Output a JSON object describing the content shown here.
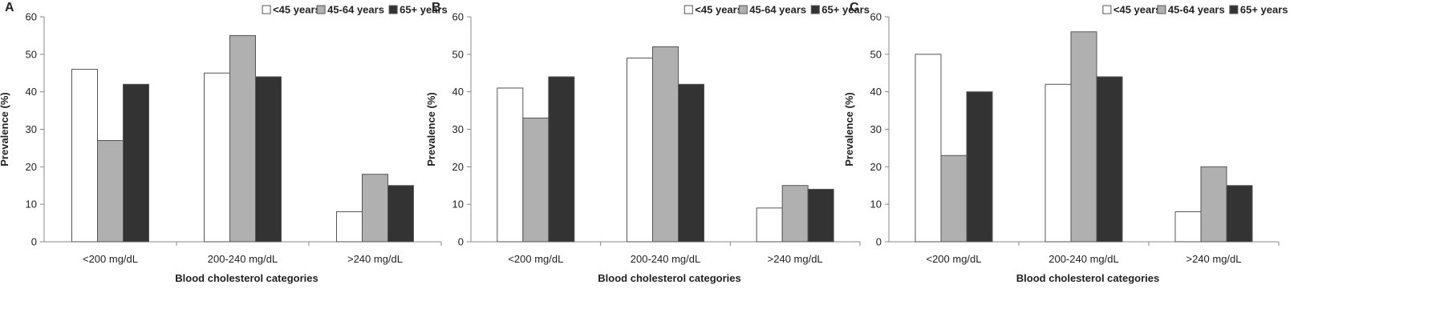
{
  "colors": {
    "lt45": "#ffffff",
    "mid": "#b0b0b0",
    "old": "#333333",
    "stroke": "#555555",
    "axis": "#888888"
  },
  "chart_data": [
    {
      "type": "bar",
      "panel_label": "A",
      "categories": [
        "<200 mg/dL",
        "200-240 mg/dL",
        ">240 mg/dL"
      ],
      "series": [
        {
          "name": "<45 years",
          "values": [
            46,
            45,
            8
          ]
        },
        {
          "name": "45-64 years",
          "values": [
            27,
            55,
            18
          ]
        },
        {
          "name": "65+ years",
          "values": [
            42,
            44,
            15
          ]
        }
      ],
      "xlabel": "Blood cholesterol categories",
      "ylabel": "Prevalence (%)",
      "ylim": [
        0,
        60
      ],
      "yticks": [
        0,
        10,
        20,
        30,
        40,
        50,
        60
      ],
      "grid": false,
      "legend": "top"
    },
    {
      "type": "bar",
      "panel_label": "B",
      "categories": [
        "<200 mg/dL",
        "200-240 mg/dL",
        ">240 mg/dL"
      ],
      "series": [
        {
          "name": "<45 years",
          "values": [
            41,
            49,
            9
          ]
        },
        {
          "name": "45-64 years",
          "values": [
            33,
            52,
            15
          ]
        },
        {
          "name": "65+ years",
          "values": [
            44,
            42,
            14
          ]
        }
      ],
      "xlabel": "Blood cholesterol categories",
      "ylabel": "Prevalence (%)",
      "ylim": [
        0,
        60
      ],
      "yticks": [
        0,
        10,
        20,
        30,
        40,
        50,
        60
      ],
      "grid": false,
      "legend": "top"
    },
    {
      "type": "bar",
      "panel_label": "C",
      "categories": [
        "<200 mg/dL",
        "200-240 mg/dL",
        ">240 mg/dL"
      ],
      "series": [
        {
          "name": "<45 years",
          "values": [
            50,
            42,
            8
          ]
        },
        {
          "name": "45-64 years",
          "values": [
            23,
            56,
            20
          ]
        },
        {
          "name": "65+ years",
          "values": [
            40,
            44,
            15
          ]
        }
      ],
      "xlabel": "Blood cholesterol categories",
      "ylabel": "Prevalence (%)",
      "ylim": [
        0,
        60
      ],
      "yticks": [
        0,
        10,
        20,
        30,
        40,
        50,
        60
      ],
      "grid": false,
      "legend": "top"
    }
  ]
}
